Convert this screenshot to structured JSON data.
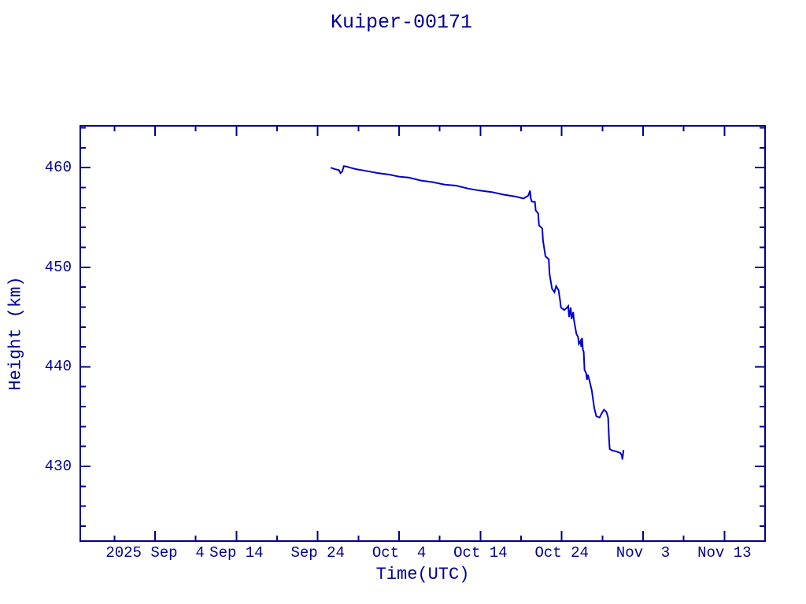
{
  "page": {
    "background": "#ffffff",
    "colors": {
      "text": "#000090",
      "axis": "#000090",
      "line": "#0000cc"
    }
  },
  "chart_data": {
    "type": "line",
    "title": "Kuiper-00171",
    "xlabel": "Time(UTC)",
    "ylabel": "Height (km)",
    "x_unit_note": "x values are days relative to 2025 Sep 4 00:00 UTC; axis shows calendar dates",
    "xlim": [
      -9.2,
      75.0
    ],
    "ylim": [
      422.5,
      464.2
    ],
    "grid": false,
    "legend": "none",
    "x_major_ticks": [
      {
        "day": 0,
        "label": "2025 Sep  4"
      },
      {
        "day": 10,
        "label": "Sep 14"
      },
      {
        "day": 20,
        "label": "Sep 24"
      },
      {
        "day": 30,
        "label": "Oct  4"
      },
      {
        "day": 40,
        "label": "Oct 14"
      },
      {
        "day": 50,
        "label": "Oct 24"
      },
      {
        "day": 60,
        "label": "Nov  3"
      },
      {
        "day": 70,
        "label": "Nov 13"
      }
    ],
    "x_minor_tick_interval_days": 5,
    "y_major_ticks": [
      430,
      440,
      450,
      460
    ],
    "y_minor_tick_interval_km": 2,
    "series": [
      {
        "name": "Kuiper-00171 orbital height",
        "color": "#0000cc",
        "points": [
          [
            21.6,
            460.0
          ],
          [
            22.1,
            459.85
          ],
          [
            22.6,
            459.75
          ],
          [
            22.8,
            459.45
          ],
          [
            23.0,
            459.6
          ],
          [
            23.2,
            460.15
          ],
          [
            23.6,
            460.1
          ],
          [
            24.0,
            460.0
          ],
          [
            24.7,
            459.85
          ],
          [
            25.4,
            459.75
          ],
          [
            26.4,
            459.6
          ],
          [
            27.4,
            459.45
          ],
          [
            28.8,
            459.3
          ],
          [
            30.0,
            459.1
          ],
          [
            31.2,
            459.0
          ],
          [
            32.7,
            458.7
          ],
          [
            34.1,
            458.55
          ],
          [
            35.6,
            458.3
          ],
          [
            37.0,
            458.2
          ],
          [
            38.5,
            457.9
          ],
          [
            39.9,
            457.7
          ],
          [
            41.4,
            457.55
          ],
          [
            42.8,
            457.3
          ],
          [
            44.3,
            457.1
          ],
          [
            45.3,
            456.9
          ],
          [
            45.6,
            457.05
          ],
          [
            45.9,
            457.2
          ],
          [
            46.1,
            457.7
          ],
          [
            46.2,
            456.9
          ],
          [
            46.3,
            456.6
          ],
          [
            46.7,
            456.55
          ],
          [
            46.8,
            455.7
          ],
          [
            47.1,
            455.4
          ],
          [
            47.2,
            454.2
          ],
          [
            47.6,
            453.9
          ],
          [
            47.7,
            452.65
          ],
          [
            48.0,
            451.1
          ],
          [
            48.4,
            450.8
          ],
          [
            48.5,
            449.3
          ],
          [
            48.8,
            447.85
          ],
          [
            49.1,
            447.5
          ],
          [
            49.3,
            448.1
          ],
          [
            49.6,
            447.7
          ],
          [
            49.8,
            446.65
          ],
          [
            49.9,
            445.95
          ],
          [
            50.3,
            445.7
          ],
          [
            50.6,
            445.9
          ],
          [
            50.8,
            446.1
          ],
          [
            50.9,
            445.0
          ],
          [
            51.1,
            445.95
          ],
          [
            51.2,
            444.8
          ],
          [
            51.4,
            445.5
          ],
          [
            51.5,
            444.7
          ],
          [
            51.8,
            443.3
          ],
          [
            52.0,
            443.0
          ],
          [
            52.1,
            442.3
          ],
          [
            52.3,
            442.6
          ],
          [
            52.4,
            442.0
          ],
          [
            52.5,
            442.9
          ],
          [
            52.6,
            441.7
          ],
          [
            52.7,
            441.5
          ],
          [
            52.8,
            439.7
          ],
          [
            53.0,
            439.35
          ],
          [
            53.1,
            438.7
          ],
          [
            53.2,
            439.2
          ],
          [
            53.4,
            438.65
          ],
          [
            53.7,
            437.6
          ],
          [
            54.0,
            435.85
          ],
          [
            54.25,
            435.05
          ],
          [
            54.65,
            434.9
          ],
          [
            54.9,
            435.3
          ],
          [
            55.2,
            435.7
          ],
          [
            55.5,
            435.45
          ],
          [
            55.7,
            434.9
          ],
          [
            55.8,
            433.0
          ],
          [
            55.9,
            431.75
          ],
          [
            56.2,
            431.6
          ],
          [
            56.7,
            431.5
          ],
          [
            57.2,
            431.35
          ],
          [
            57.4,
            431.1
          ],
          [
            57.45,
            430.7
          ],
          [
            57.6,
            431.65
          ]
        ]
      }
    ]
  }
}
